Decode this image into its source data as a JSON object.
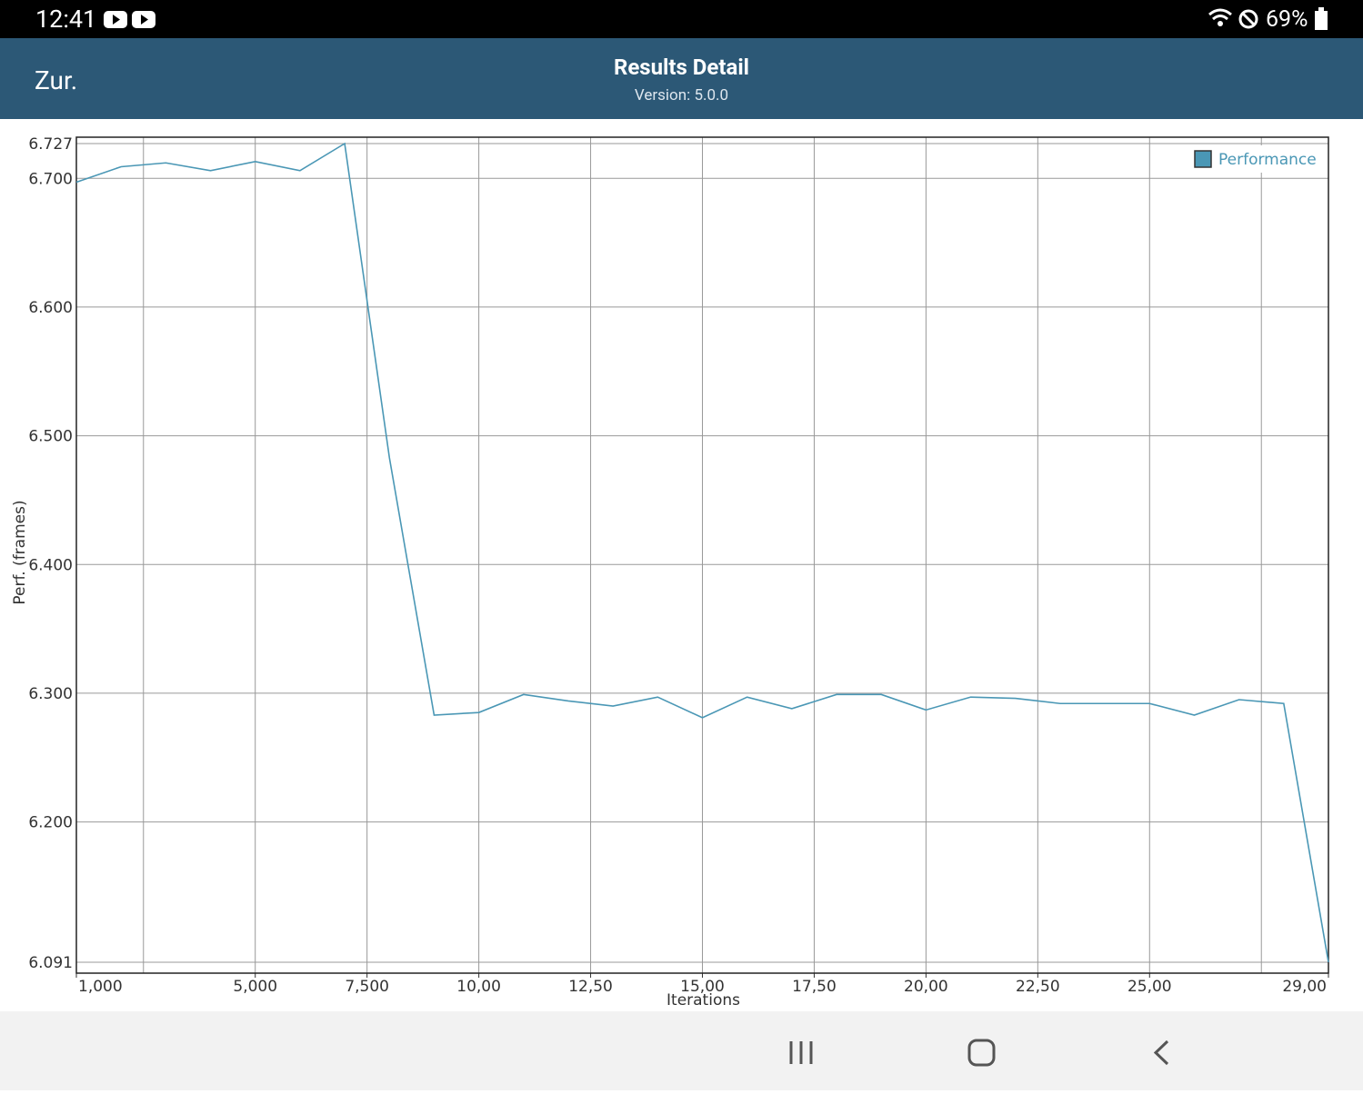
{
  "status_bar": {
    "time": "12:41",
    "battery": "69%"
  },
  "header": {
    "back": "Zur.",
    "title": "Results Detail",
    "subtitle": "Version: 5.0.0"
  },
  "chart_data": {
    "type": "line",
    "x_label": "Iterations",
    "y_label": "Perf. (frames)",
    "x": [
      1000,
      2000,
      3000,
      4000,
      5000,
      6000,
      7000,
      8000,
      9000,
      10000,
      11000,
      12000,
      13000,
      14000,
      15000,
      16000,
      17000,
      18000,
      19000,
      20000,
      21000,
      22000,
      23000,
      24000,
      25000,
      26000,
      27000,
      28000,
      29000
    ],
    "series": [
      {
        "name": "Performance",
        "color": "#4a97b5",
        "values": [
          6.697,
          6.709,
          6.712,
          6.706,
          6.713,
          6.706,
          6.727,
          6.483,
          6.283,
          6.285,
          6.299,
          6.294,
          6.29,
          6.297,
          6.281,
          6.297,
          6.288,
          6.299,
          6.299,
          6.287,
          6.297,
          6.296,
          6.292,
          6.292,
          6.292,
          6.283,
          6.295,
          6.292,
          6.091
        ]
      }
    ],
    "xlim": [
      1000,
      29000
    ],
    "ylim": [
      6.091,
      6.727
    ],
    "xticks": [
      {
        "value": 1000,
        "label": "1,000"
      },
      {
        "value": 5000,
        "label": "5,000"
      },
      {
        "value": 7500,
        "label": "7,500"
      },
      {
        "value": 10000,
        "label": "10,00"
      },
      {
        "value": 12500,
        "label": "12,50"
      },
      {
        "value": 15000,
        "label": "15,00"
      },
      {
        "value": 17500,
        "label": "17,50"
      },
      {
        "value": 20000,
        "label": "20,00"
      },
      {
        "value": 22500,
        "label": "22,50"
      },
      {
        "value": 25000,
        "label": "25,00"
      },
      {
        "value": 29000,
        "label": "29,00"
      }
    ],
    "xgrid": [
      2500,
      5000,
      7500,
      10000,
      12500,
      15000,
      17500,
      20000,
      22500,
      25000,
      27500
    ],
    "yticks": [
      6.727,
      {
        "value": 6.7,
        "label": "6.700"
      },
      {
        "value": 6.6,
        "label": "6.600"
      },
      {
        "value": 6.5,
        "label": "6.500"
      },
      {
        "value": 6.4,
        "label": "6.400"
      },
      {
        "value": 6.3,
        "label": "6.300"
      },
      {
        "value": 6.2,
        "label": "6.200"
      },
      6.091
    ],
    "grid": true,
    "legend": "upper right"
  }
}
